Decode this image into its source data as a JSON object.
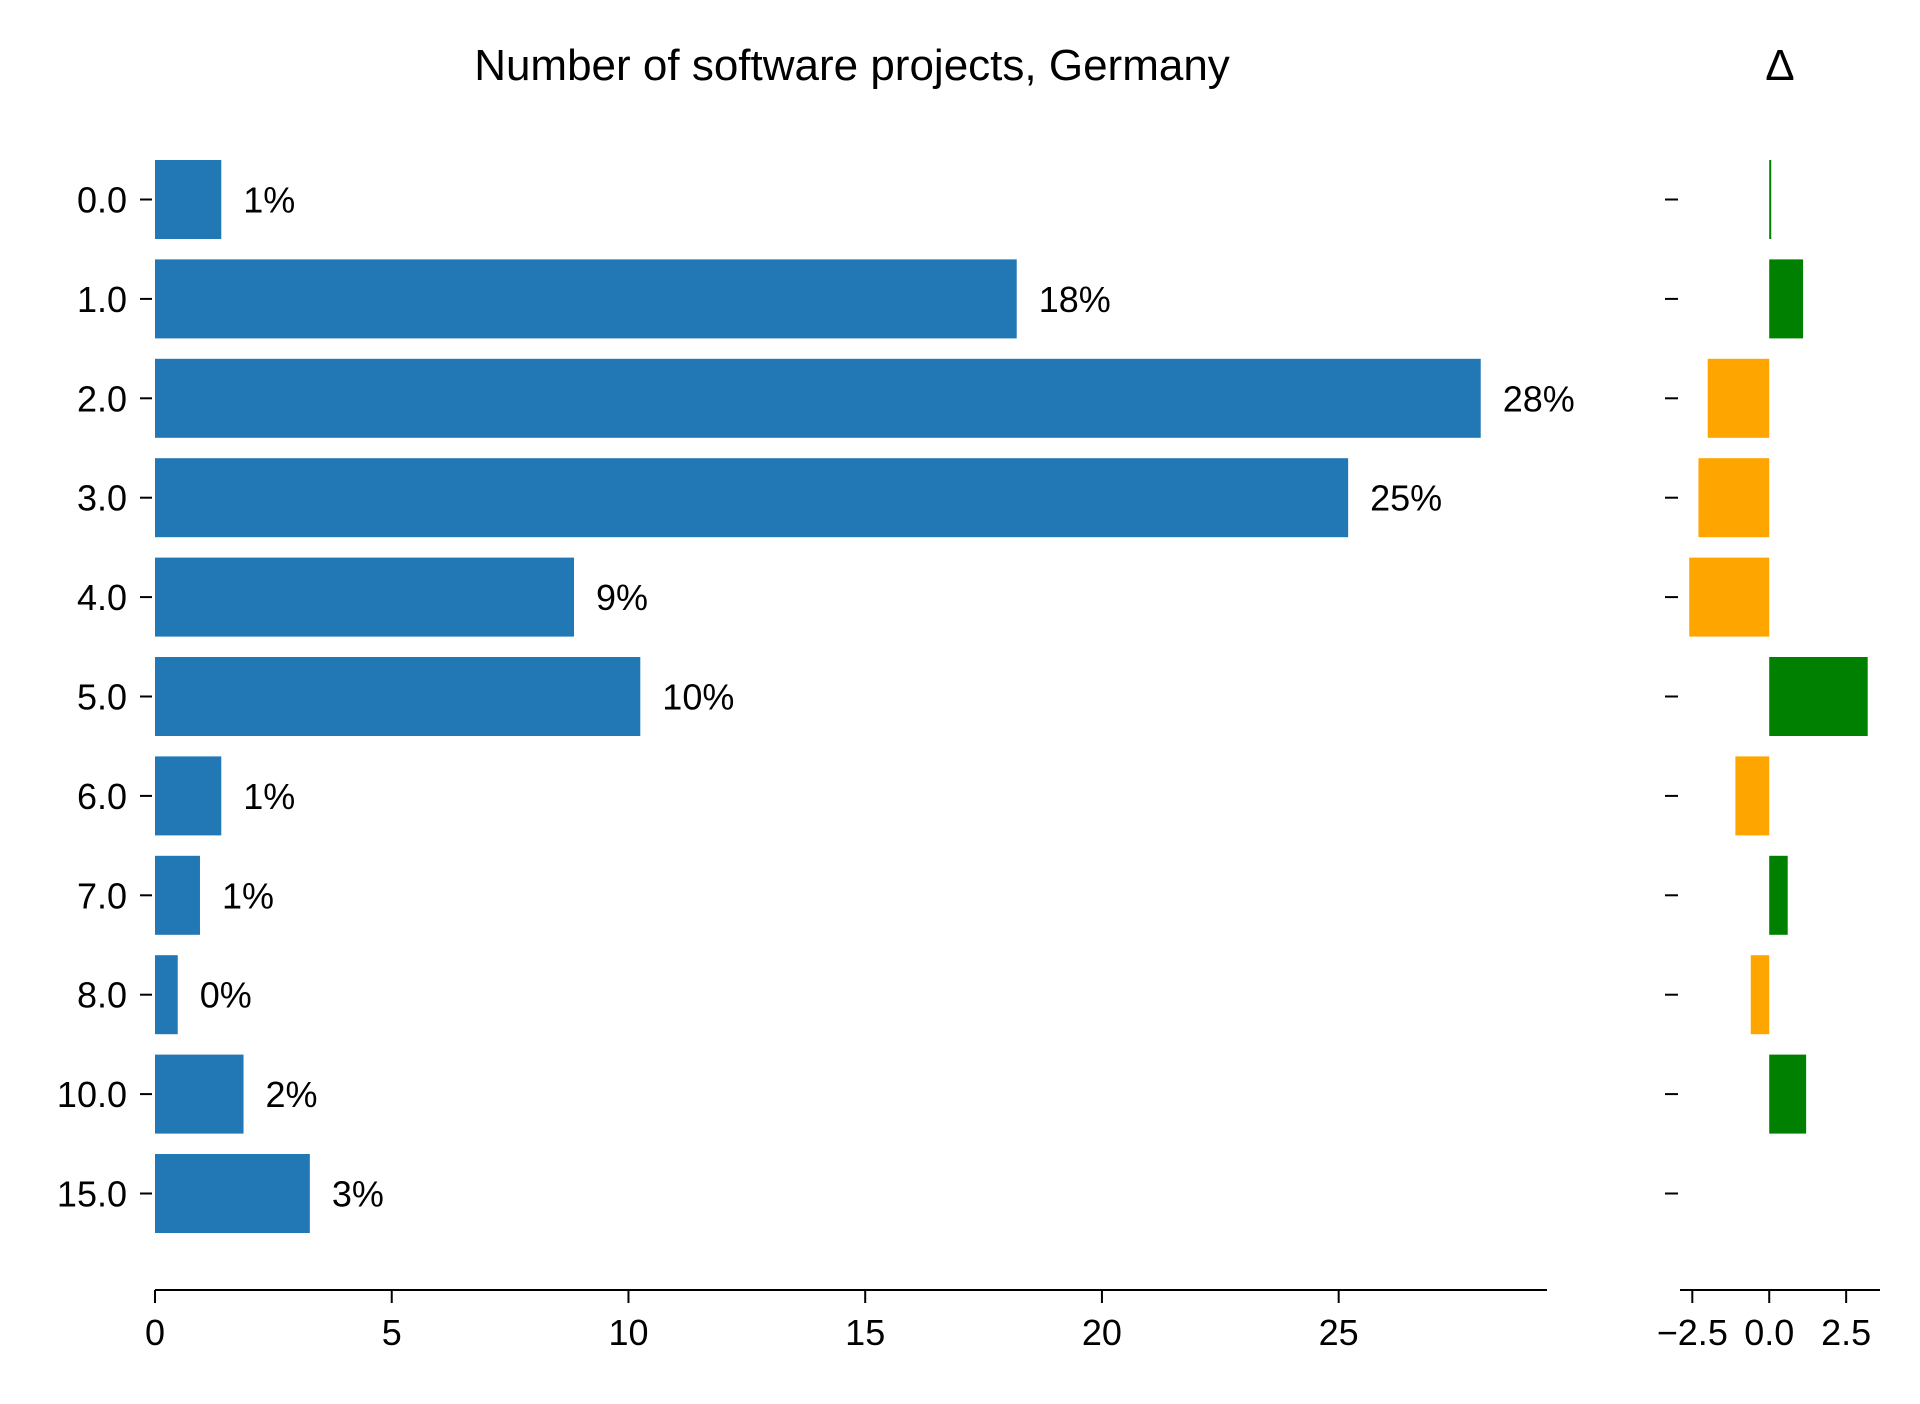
{
  "chart_data": [
    {
      "type": "bar",
      "orientation": "horizontal",
      "title": "Number of software projects, Germany",
      "categories": [
        "0.0",
        "1.0",
        "2.0",
        "3.0",
        "4.0",
        "5.0",
        "6.0",
        "7.0",
        "8.0",
        "10.0",
        "15.0"
      ],
      "values": [
        1.4,
        18.2,
        28.0,
        25.2,
        8.85,
        10.25,
        1.4,
        0.95,
        0.48,
        1.87,
        3.27
      ],
      "data_labels": [
        "1%",
        "18%",
        "28%",
        "25%",
        "9%",
        "10%",
        "1%",
        "1%",
        "0%",
        "2%",
        "3%"
      ],
      "xlim": [
        0,
        29.4
      ],
      "xticks": [
        0,
        5,
        10,
        15,
        20,
        25
      ],
      "xtick_labels": [
        "0",
        "5",
        "10",
        "15",
        "20",
        "25"
      ],
      "bar_color": "#2178b4",
      "grid": false
    },
    {
      "type": "bar",
      "orientation": "horizontal",
      "title": "Δ",
      "categories": [
        "0.0",
        "1.0",
        "2.0",
        "3.0",
        "4.0",
        "5.0",
        "6.0",
        "7.0",
        "8.0",
        "10.0",
        "15.0"
      ],
      "values": [
        0.05,
        1.1,
        -2.0,
        -2.3,
        -2.6,
        3.2,
        -1.1,
        0.6,
        -0.6,
        1.2,
        0
      ],
      "xlim": [
        -2.9,
        3.6
      ],
      "xticks": [
        -2.5,
        0,
        2.5
      ],
      "xtick_labels": [
        "−2.5",
        "0.0",
        "2.5"
      ],
      "positive_color": "#008000",
      "negative_color": "#ffa500",
      "grid": false
    }
  ]
}
